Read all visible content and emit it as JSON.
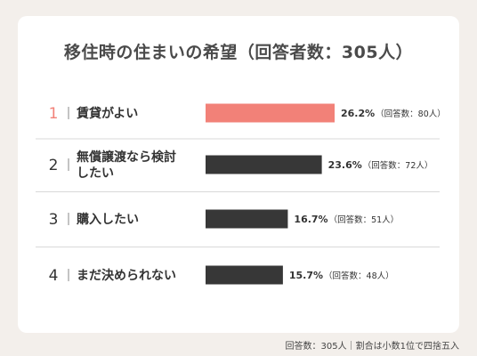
{
  "title": "移住時の住まいの希望（回答者数：305人）",
  "footnote": "回答数：305人｜割合は小数1位で四捨五入",
  "colors": {
    "highlight": "#f28178",
    "bar": "#373737",
    "text": "#333333",
    "divider": "#d9d9d9",
    "card": "#ffffff",
    "background": "#f3efeb"
  },
  "chart_data": {
    "type": "bar",
    "orientation": "horizontal",
    "title": "移住時の住まいの希望（回答者数：305人）",
    "categories": [
      {
        "rank": "1",
        "lines": [
          "賃貸がよい"
        ]
      },
      {
        "rank": "2",
        "lines": [
          "無償譲渡なら検討",
          "したい"
        ]
      },
      {
        "rank": "3",
        "lines": [
          "購入したい"
        ]
      },
      {
        "rank": "4",
        "lines": [
          "まだ決められない"
        ]
      }
    ],
    "values": [
      26.2,
      23.6,
      16.7,
      15.7
    ],
    "value_labels": [
      "26.2%",
      "23.6%",
      "16.7%",
      "15.7%"
    ],
    "count_labels": [
      "（回答数：80人）",
      "（回答数：72人）",
      "（回答数：51人）",
      "（回答数：48人）"
    ],
    "highlight_index": 0,
    "unit": "%"
  }
}
